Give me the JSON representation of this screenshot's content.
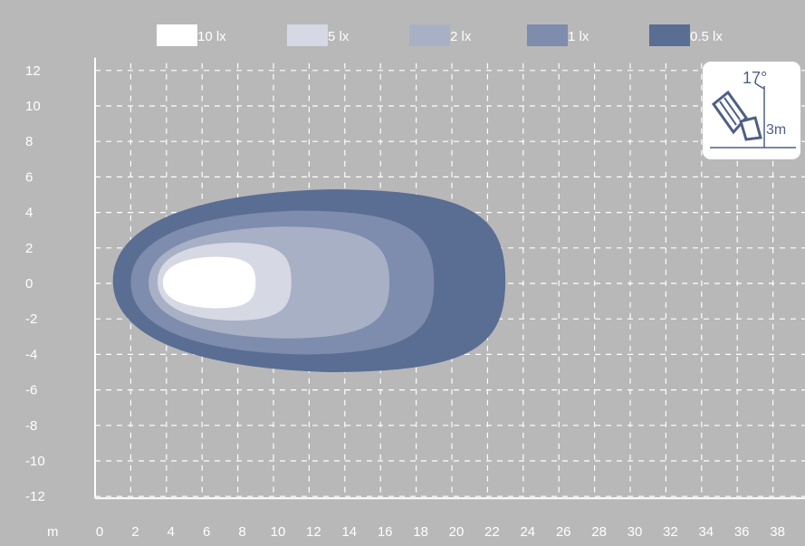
{
  "chart_data": {
    "type": "heatmap",
    "description_note": "",
    "legend": [
      {
        "label": "10 lx",
        "color": "#ffffff"
      },
      {
        "label": "5 lx",
        "color": "#d6d8e3"
      },
      {
        "label": "2 lx",
        "color": "#a8b0c6"
      },
      {
        "label": "1 lx",
        "color": "#7e8cad"
      },
      {
        "label": "0.5 lx",
        "color": "#5a6d93"
      }
    ],
    "x_unit_label": "m",
    "x_ticks": [
      "0",
      "2",
      "4",
      "6",
      "8",
      "10",
      "12",
      "14",
      "16",
      "18",
      "20",
      "22",
      "24",
      "26",
      "28",
      "30",
      "32",
      "34",
      "36",
      "38"
    ],
    "y_ticks": [
      "12",
      "10",
      "8",
      "6",
      "4",
      "2",
      "0",
      "-2",
      "-4",
      "-6",
      "-8",
      "-10",
      "-12"
    ],
    "xlim": [
      0,
      40
    ],
    "ylim": [
      -12,
      12
    ],
    "grid": true,
    "contours": [
      {
        "label": "0.5 lx",
        "x_range": [
          1,
          23
        ],
        "y_range": [
          -5,
          5.3
        ]
      },
      {
        "label": "1 lx",
        "x_range": [
          2,
          19
        ],
        "y_range": [
          -4,
          4.1
        ]
      },
      {
        "label": "2 lx",
        "x_range": [
          3,
          16.5
        ],
        "y_range": [
          -3.1,
          3.2
        ]
      },
      {
        "label": "5 lx",
        "x_range": [
          3.5,
          11
        ],
        "y_range": [
          -2.1,
          2.3
        ]
      },
      {
        "label": "10 lx",
        "x_range": [
          3.8,
          9
        ],
        "y_range": [
          -1.4,
          1.5
        ]
      }
    ]
  },
  "inset": {
    "angle_label": "17°",
    "height_label": "3m"
  }
}
